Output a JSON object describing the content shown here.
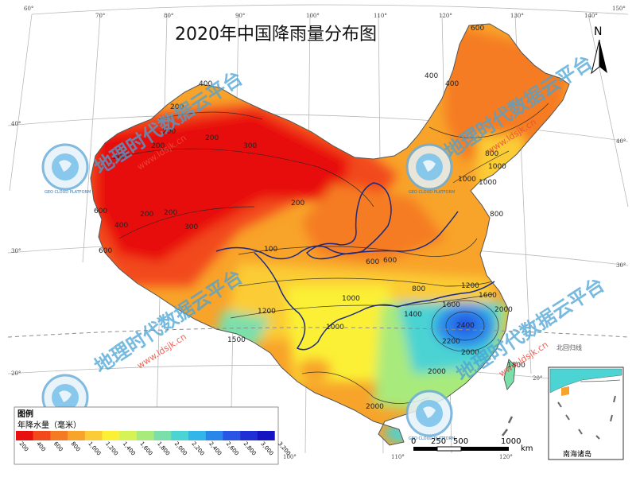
{
  "title": "2020年中国降雨量分布图",
  "north_label": "N",
  "graticule": {
    "lon_labels": [
      "60°",
      "70°",
      "80°",
      "90°",
      "100°",
      "110°",
      "120°",
      "130°",
      "140°",
      "150°",
      "100°",
      "110°",
      "120°"
    ],
    "lat_labels": [
      "40°",
      "30°",
      "20°",
      "40°",
      "30°",
      "20°"
    ]
  },
  "isoline_labels": [
    "200",
    "200",
    "200",
    "200",
    "200",
    "200",
    "200",
    "300",
    "300",
    "300",
    "400",
    "400",
    "400",
    "400",
    "600",
    "600",
    "600",
    "600",
    "600",
    "800",
    "800",
    "800",
    "1000",
    "1000",
    "1000",
    "1000",
    "1200",
    "1200",
    "1400",
    "1500",
    "1600",
    "1600",
    "1800",
    "2000",
    "2000",
    "2000",
    "2000",
    "2200",
    "2400",
    "100",
    "1000"
  ],
  "watermark": {
    "text": "地理时代数据云平台",
    "url": "www.ldsjk.cn",
    "logo_text": "GEO CLOUD PLATFORM"
  },
  "legend": {
    "title": "图例",
    "subtitle": "年降水量（毫米）",
    "colors": [
      "#e8100e",
      "#f2481a",
      "#f57b22",
      "#f8a32a",
      "#fbcc36",
      "#fbf036",
      "#d7f255",
      "#a8ea7b",
      "#7bdfaa",
      "#4cd3d3",
      "#32b5e8",
      "#2b86ea",
      "#2855e4",
      "#1f2fd6",
      "#1414c2"
    ],
    "ticks": [
      "200",
      "400",
      "600",
      "800",
      "1,000",
      "1,200",
      "1,400",
      "1,600",
      "1,800",
      "2,000",
      "2,200",
      "2,400",
      "2,600",
      "2,800",
      "3,000",
      "3,200"
    ]
  },
  "scale_bar": {
    "labels": [
      "0",
      "250",
      "500",
      "1000"
    ],
    "unit": "km"
  },
  "inset": {
    "title": "南海诸岛",
    "tropic_label": "北回归线"
  }
}
